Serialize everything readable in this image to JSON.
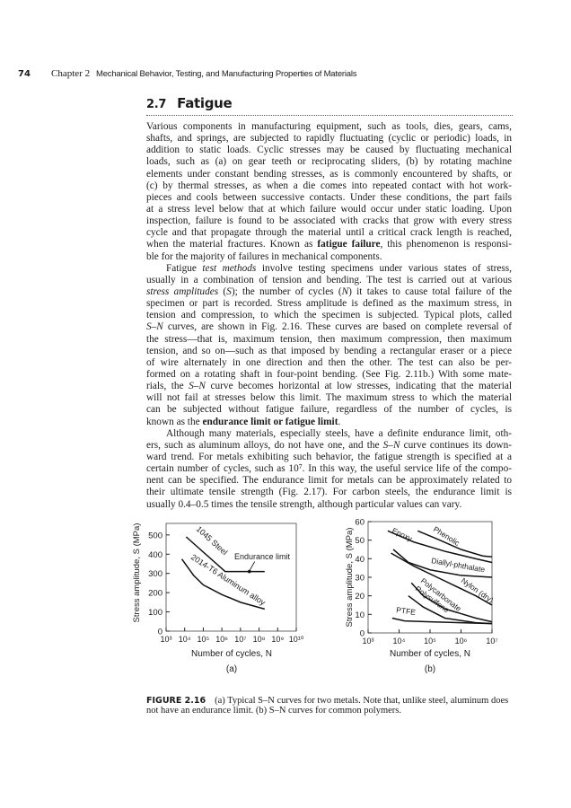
{
  "header": {
    "page_number": "74",
    "chapter": "Chapter 2",
    "chapter_title": "Mechanical Behavior, Testing, and Manufacturing Properties of Materials"
  },
  "section": {
    "number": "2.7",
    "title": "Fatigue"
  },
  "body_lines": [
    [
      [
        "Various components in manufacturing equipment, such as tools, dies, gears, cams,"
      ]
    ],
    [
      [
        "shafts, and springs, are subjected to rapidly fluctuating (cyclic or periodic) loads, in"
      ]
    ],
    [
      [
        "addition to static loads. Cyclic stresses may be caused by fluctuating mechanical"
      ]
    ],
    [
      [
        "loads, such as (a) on gear teeth or reciprocating sliders, (b) by rotating machine"
      ]
    ],
    [
      [
        "elements under constant bending stresses, as is commonly encountered by shafts, or"
      ]
    ],
    [
      [
        "(c) by thermal stresses, as when a die comes into repeated contact with hot work-"
      ]
    ],
    [
      [
        "pieces and cools between successive contacts. Under these conditions, the part fails"
      ]
    ],
    [
      [
        "at a stress level below that at which failure would occur under static loading. Upon"
      ]
    ],
    [
      [
        "inspection, failure is found to be associated with cracks that grow with every stress"
      ]
    ],
    [
      [
        "cycle and that propagate through the material until a critical crack length is reached,"
      ]
    ],
    [
      [
        "when the material fractures. Known as "
      ],
      [
        "fatigue failure",
        "b"
      ],
      [
        ", this phenomenon is responsi-"
      ]
    ],
    [
      [
        "ble for the majority of failures in mechanical components."
      ]
    ],
    [
      [
        "Fatigue "
      ],
      [
        "test methods",
        "i"
      ],
      [
        " involve testing specimens under various states of stress,"
      ]
    ],
    [
      [
        "usually in a combination of tension and bending. The test is carried out at various"
      ]
    ],
    [
      [
        "stress amplitudes",
        "i"
      ],
      [
        " ("
      ],
      [
        "S",
        "i"
      ],
      [
        "); the number of cycles ("
      ],
      [
        "N",
        "i"
      ],
      [
        ") it takes to cause total failure of the"
      ]
    ],
    [
      [
        "specimen or part is recorded. Stress amplitude is defined as the maximum stress, in"
      ]
    ],
    [
      [
        "tension and compression, to which the specimen is subjected. Typical plots, called"
      ]
    ],
    [
      [
        "S–N",
        "i"
      ],
      [
        " curves, are shown in Fig. 2.16. These curves are based on complete reversal of"
      ]
    ],
    [
      [
        "the stress—that is, maximum tension, then maximum compression, then maximum"
      ]
    ],
    [
      [
        "tension, and so on—such as that imposed by bending a rectangular eraser or a piece"
      ]
    ],
    [
      [
        "of wire alternately in one direction and then the other. The test can also be per-"
      ]
    ],
    [
      [
        "formed on a rotating shaft in four-point bending. (See Fig. 2.11b.) With some mate-"
      ]
    ],
    [
      [
        "rials, the "
      ],
      [
        "S–N",
        "i"
      ],
      [
        " curve becomes horizontal at low stresses, indicating that the material"
      ]
    ],
    [
      [
        "will not fail at stresses below this limit. The maximum stress to which the material"
      ]
    ],
    [
      [
        "can be subjected without fatigue failure, regardless of the number of cycles, is"
      ]
    ],
    [
      [
        "known as the "
      ],
      [
        "endurance limit or fatigue limit",
        "b"
      ],
      [
        "."
      ]
    ],
    [
      [
        "Although many materials, especially steels, have a definite endurance limit, oth-"
      ]
    ],
    [
      [
        "ers, such as aluminum alloys, do not have one, and the "
      ],
      [
        "S–N",
        "i"
      ],
      [
        " curve continues its down-"
      ]
    ],
    [
      [
        "ward trend. For metals exhibiting such behavior, the fatigue strength is specified at a"
      ]
    ],
    [
      [
        "certain number of cycles, such as 10⁷. In this way, the useful service life of the compo-"
      ]
    ],
    [
      [
        "nent can be specified. The endurance limit for metals can be approximately related to"
      ]
    ],
    [
      [
        "their ultimate tensile strength (Fig. 2.17). For carbon steels, the endurance limit is"
      ]
    ],
    [
      [
        "usually 0.4–0.5 times the tensile strength, although particular values can vary."
      ]
    ]
  ],
  "chart_data": [
    {
      "type": "line",
      "panel": "(a)",
      "xlabel": "Number of cycles, N",
      "ylabel": "Stress amplitude, S (MPa)",
      "x_scale": "log",
      "x_ticks": [
        "10³",
        "10⁴",
        "10⁵",
        "10⁶",
        "10⁷",
        "10⁸",
        "10⁹",
        "10¹⁰"
      ],
      "y_ticks": [
        "0",
        "100",
        "200",
        "300",
        "400",
        "500"
      ],
      "xlim": [
        1000,
        10000000000
      ],
      "ylim": [
        0,
        560
      ],
      "series": [
        {
          "name": "1045 Steel",
          "x": [
            12000,
            1500000,
            200000000
          ],
          "y": [
            490,
            310,
            310
          ]
        },
        {
          "name": "2014-T6 Aluminum alloy",
          "x": [
            7000,
            30000,
            100000,
            1000000,
            10000000,
            200000000
          ],
          "y": [
            375,
            290,
            240,
            190,
            150,
            115
          ]
        }
      ],
      "annotations": [
        {
          "text": "Endurance limit",
          "x": 30000000,
          "y": 310
        }
      ]
    },
    {
      "type": "line",
      "panel": "(b)",
      "xlabel": "Number of cycles, N",
      "ylabel": "Stress amplitude, S (MPa)",
      "x_scale": "log",
      "x_ticks": [
        "10³",
        "10⁴",
        "10⁵",
        "10⁶",
        "10⁷"
      ],
      "y_ticks": [
        "0",
        "10",
        "20",
        "30",
        "40",
        "50",
        "60"
      ],
      "xlim": [
        1000,
        10000000
      ],
      "ylim": [
        0,
        60
      ],
      "series": [
        {
          "name": "Epoxy",
          "x": [
            4300,
            30000,
            300000,
            3000000,
            10000000
          ],
          "y": [
            55,
            49,
            44,
            40,
            38
          ]
        },
        {
          "name": "Phenolic",
          "x": [
            40000,
            150000,
            1000000,
            5000000,
            10000000
          ],
          "y": [
            55,
            51,
            45,
            41.5,
            41
          ]
        },
        {
          "name": "Diallyl-phthalate",
          "x": [
            6500,
            20000,
            100000,
            1000000,
            10000000
          ],
          "y": [
            45,
            38,
            34,
            31,
            30
          ]
        },
        {
          "name": "Nylon (dry)",
          "x": [
            5500,
            30000,
            300000,
            3000000,
            10000000
          ],
          "y": [
            43,
            36,
            28,
            20,
            15
          ]
        },
        {
          "name": "Polycarbonate",
          "x": [
            25000,
            60000,
            300000,
            3000000,
            10000000
          ],
          "y": [
            27,
            20,
            13,
            8,
            6
          ]
        },
        {
          "name": "Polysulfone",
          "x": [
            20000,
            60000,
            300000,
            3000000,
            10000000
          ],
          "y": [
            20,
            14,
            8,
            5.5,
            5
          ]
        },
        {
          "name": "PTFE",
          "x": [
            6000,
            15000,
            100000,
            1000000,
            10000000
          ],
          "y": [
            8,
            6.5,
            6,
            5.5,
            5
          ]
        }
      ]
    }
  ],
  "figure": {
    "label": "FIGURE 2.16",
    "caption_line1": "(a) Typical S–N curves for two metals. Note that, unlike steel, aluminum does",
    "caption_line2": "not have an endurance limit. (b) S–N curves for common polymers.",
    "axis_base": "10"
  }
}
